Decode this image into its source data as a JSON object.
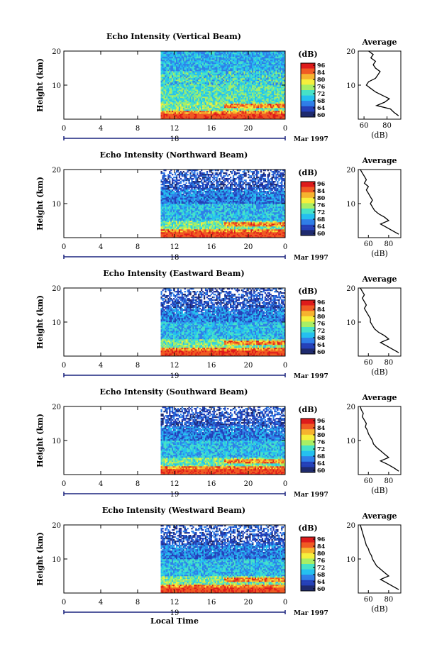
{
  "figure": {
    "x_axis_label": "Local Time",
    "date_label": "Mar 1997",
    "colorbar_unit": "(dB)",
    "colorbar_ticks": [
      "96",
      "84",
      "80",
      "76",
      "72",
      "68",
      "64",
      "60"
    ],
    "day_labels": [
      "18",
      "18",
      "19",
      "19",
      "19"
    ],
    "average_title": "Average",
    "average_xlabel": "(dB)"
  },
  "colors": {
    "colormap": [
      "#1e2a6e",
      "#2440b8",
      "#2f7ee8",
      "#25c0ef",
      "#46e2c8",
      "#a8ee64",
      "#f6ef3c",
      "#f6b32e",
      "#f05a23",
      "#de1b1b"
    ],
    "background": "#ffffff",
    "axis": "#000000",
    "day_marker": "#1a237e"
  },
  "chart_data": [
    {
      "type": "heatmap",
      "title": "Echo Intensity (Vertical Beam)",
      "xlabel": "",
      "ylabel": "Height (km)",
      "x_ticks": [
        "0",
        "4",
        "8",
        "12",
        "16",
        "20",
        "0"
      ],
      "y_ticks": [
        "20",
        "10"
      ],
      "xlim": [
        0,
        24
      ],
      "ylim": [
        0,
        20
      ],
      "data_start_hour": 10.5,
      "colorbar_range": [
        60,
        96
      ],
      "average_profile": {
        "title": "Average",
        "xlabel": "(dB)",
        "x_ticks": [
          "60",
          "80"
        ],
        "y_ticks": [
          "20",
          "10"
        ],
        "xlim": [
          55,
          92
        ],
        "height": [
          1,
          2,
          3,
          4,
          5,
          6,
          7,
          8,
          9,
          10,
          11,
          12,
          13,
          14,
          15,
          16,
          17,
          18,
          19,
          20
        ],
        "db": [
          90,
          86,
          83,
          71,
          78,
          82,
          76,
          70,
          66,
          62,
          64,
          70,
          72,
          74,
          70,
          68,
          70,
          66,
          68,
          64
        ]
      }
    },
    {
      "type": "heatmap",
      "title": "Echo Intensity (Northward Beam)",
      "xlabel": "",
      "ylabel": "Height (km)",
      "x_ticks": [
        "0",
        "4",
        "8",
        "12",
        "16",
        "20",
        "0"
      ],
      "y_ticks": [
        "20",
        "10"
      ],
      "xlim": [
        0,
        24
      ],
      "ylim": [
        0,
        20
      ],
      "data_start_hour": 10.5,
      "colorbar_range": [
        60,
        96
      ],
      "average_profile": {
        "title": "Average",
        "xlabel": "(dB)",
        "x_ticks": [
          "60",
          "80"
        ],
        "y_ticks": [
          "20",
          "10"
        ],
        "xlim": [
          50,
          92
        ],
        "height": [
          1,
          2,
          3,
          4,
          5,
          6,
          7,
          8,
          9,
          10,
          11,
          12,
          13,
          14,
          15,
          16,
          17,
          18,
          19,
          20
        ],
        "db": [
          90,
          84,
          78,
          72,
          80,
          76,
          70,
          66,
          64,
          62,
          64,
          62,
          60,
          58,
          60,
          56,
          58,
          56,
          54,
          52
        ]
      }
    },
    {
      "type": "heatmap",
      "title": "Echo Intensity (Eastward Beam)",
      "xlabel": "",
      "ylabel": "Height (km)",
      "x_ticks": [
        "0",
        "4",
        "8",
        "12",
        "16",
        "20",
        "0"
      ],
      "y_ticks": [
        "20",
        "10"
      ],
      "xlim": [
        0,
        24
      ],
      "ylim": [
        0,
        20
      ],
      "data_start_hour": 10.5,
      "colorbar_range": [
        60,
        96
      ],
      "average_profile": {
        "title": "Average",
        "xlabel": "(dB)",
        "x_ticks": [
          "60",
          "80"
        ],
        "y_ticks": [
          "20",
          "10"
        ],
        "xlim": [
          50,
          92
        ],
        "height": [
          1,
          2,
          3,
          4,
          5,
          6,
          7,
          8,
          9,
          10,
          11,
          12,
          13,
          14,
          15,
          16,
          17,
          18,
          19,
          20
        ],
        "db": [
          90,
          84,
          78,
          72,
          80,
          76,
          70,
          66,
          64,
          62,
          62,
          60,
          58,
          56,
          58,
          56,
          54,
          56,
          54,
          52
        ]
      }
    },
    {
      "type": "heatmap",
      "title": "Echo Intensity (Southward Beam)",
      "xlabel": "",
      "ylabel": "Height (km)",
      "x_ticks": [
        "0",
        "4",
        "8",
        "12",
        "16",
        "20",
        "0"
      ],
      "y_ticks": [
        "20",
        "10"
      ],
      "xlim": [
        0,
        24
      ],
      "ylim": [
        0,
        20
      ],
      "data_start_hour": 10.5,
      "colorbar_range": [
        60,
        96
      ],
      "average_profile": {
        "title": "Average",
        "xlabel": "(dB)",
        "x_ticks": [
          "60",
          "80"
        ],
        "y_ticks": [
          "20",
          "10"
        ],
        "xlim": [
          50,
          92
        ],
        "height": [
          1,
          2,
          3,
          4,
          5,
          6,
          7,
          8,
          9,
          10,
          11,
          12,
          13,
          14,
          15,
          16,
          17,
          18,
          19,
          20
        ],
        "db": [
          90,
          85,
          79,
          72,
          80,
          76,
          72,
          68,
          65,
          64,
          62,
          60,
          59,
          57,
          58,
          56,
          54,
          55,
          53,
          52
        ]
      }
    },
    {
      "type": "heatmap",
      "title": "Echo Intensity (Westward Beam)",
      "xlabel": "",
      "ylabel": "Height (km)",
      "x_ticks": [
        "0",
        "4",
        "8",
        "12",
        "16",
        "20",
        "0"
      ],
      "y_ticks": [
        "20",
        "10"
      ],
      "xlim": [
        0,
        24
      ],
      "ylim": [
        0,
        20
      ],
      "data_start_hour": 10.5,
      "colorbar_range": [
        60,
        96
      ],
      "average_profile": {
        "title": "Average",
        "xlabel": "(dB)",
        "x_ticks": [
          "60",
          "80"
        ],
        "y_ticks": [
          "20",
          "10"
        ],
        "xlim": [
          50,
          92
        ],
        "height": [
          1,
          2,
          3,
          4,
          5,
          6,
          7,
          8,
          9,
          10,
          11,
          12,
          13,
          14,
          15,
          16,
          17,
          18,
          19,
          20
        ],
        "db": [
          90,
          84,
          78,
          72,
          80,
          76,
          72,
          68,
          66,
          64,
          63,
          61,
          60,
          58,
          57,
          56,
          55,
          54,
          53,
          52
        ]
      }
    }
  ]
}
